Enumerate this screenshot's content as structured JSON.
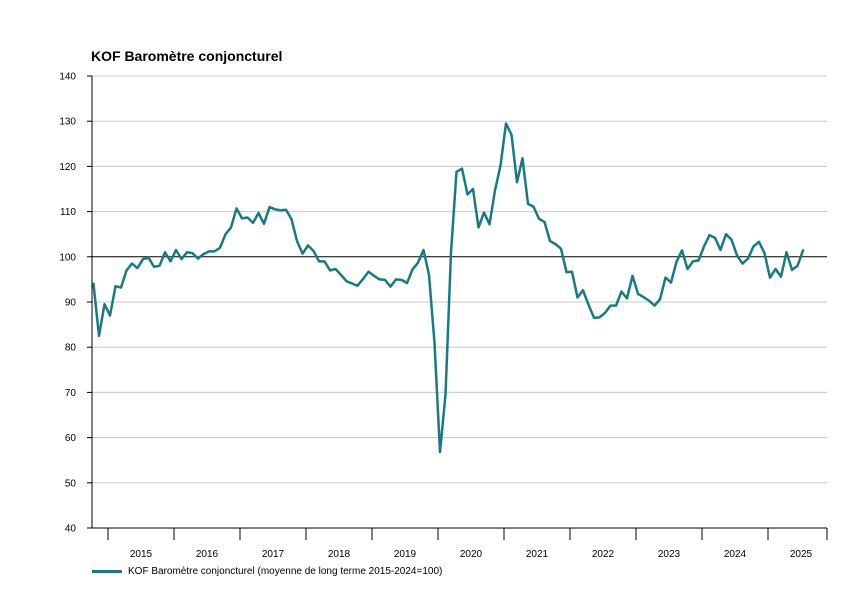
{
  "colors": {
    "line": "#177a85",
    "grid": "#c8c8c8",
    "ref": "#000000",
    "axis": "#000000"
  },
  "chart_data": {
    "type": "line",
    "title": "KOF Baromètre conjoncturel",
    "xlabel": "",
    "ylabel": "",
    "ylim": [
      40,
      140
    ],
    "yticks": [
      40,
      50,
      60,
      70,
      80,
      90,
      100,
      110,
      120,
      130,
      140
    ],
    "ytick_labels": [
      "40",
      "50",
      "60",
      "70",
      "80",
      "90",
      "100",
      "110",
      "120",
      "130",
      "140"
    ],
    "reference_line": 100,
    "grid": true,
    "x_start": "2015-01",
    "year_labels": [
      "2015",
      "2016",
      "2017",
      "2018",
      "2019",
      "2020",
      "2021",
      "2022",
      "2023",
      "2024",
      "2025"
    ],
    "legend": {
      "position": "bottom-left",
      "label": "KOF Baromètre conjoncturel (moyenne de long terme 2015-2024=100)"
    },
    "series": [
      {
        "name": "KOF Baromètre conjoncturel (moyenne de long terme 2015-2024=100)",
        "frequency": "monthly",
        "values": [
          94.0,
          82.5,
          89.5,
          87.0,
          93.5,
          93.2,
          97.0,
          98.5,
          97.5,
          99.5,
          99.8,
          97.8,
          98.0,
          101.0,
          99.0,
          101.5,
          99.5,
          101.0,
          100.8,
          99.6,
          100.6,
          101.2,
          101.2,
          102.0,
          105.0,
          106.5,
          110.7,
          108.5,
          108.7,
          107.5,
          109.7,
          107.3,
          111.0,
          110.5,
          110.3,
          110.4,
          108.3,
          103.5,
          100.7,
          102.5,
          101.3,
          99.0,
          99.0,
          97.0,
          97.3,
          96.0,
          94.6,
          94.1,
          93.6,
          95.1,
          96.7,
          95.8,
          95.0,
          94.9,
          93.4,
          95.0,
          94.9,
          94.2,
          97.2,
          98.7,
          101.5,
          96.0,
          81.0,
          56.8,
          69.5,
          101.0,
          118.8,
          119.5,
          113.8,
          115.0,
          106.5,
          109.8,
          107.2,
          114.7,
          120.2,
          129.5,
          127.0,
          116.5,
          121.8,
          111.7,
          111.1,
          108.4,
          107.7,
          103.5,
          102.8,
          101.8,
          96.6,
          96.7,
          91.0,
          92.6,
          89.4,
          86.5,
          86.6,
          87.6,
          89.2,
          89.2,
          92.3,
          90.8,
          95.8,
          91.8,
          91.1,
          90.3,
          89.2,
          90.6,
          95.4,
          94.3,
          98.9,
          101.4,
          97.3,
          99.0,
          99.2,
          102.3,
          104.8,
          104.2,
          101.5,
          105.0,
          103.8,
          100.3,
          98.5,
          99.6,
          102.3,
          103.3,
          100.8,
          95.4,
          97.3,
          95.6,
          101.0,
          97.1,
          98.0,
          101.4
        ]
      }
    ]
  }
}
